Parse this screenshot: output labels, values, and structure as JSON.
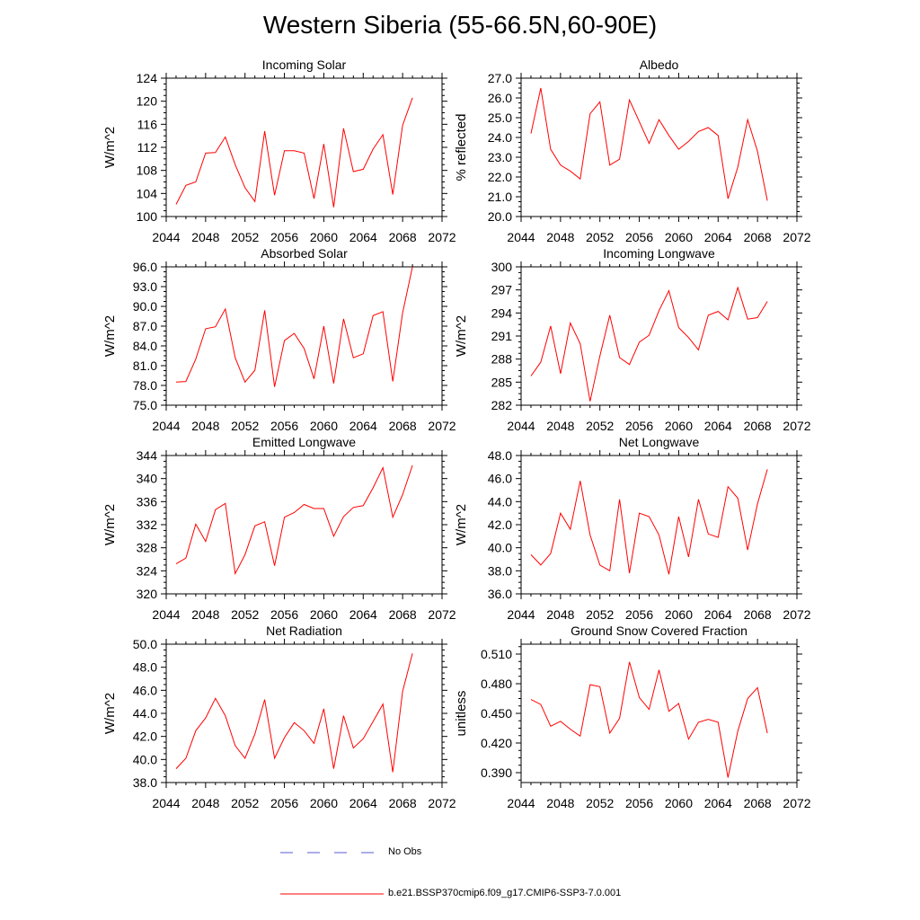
{
  "figure": {
    "title": "Western Siberia (55-66.5N,60-90E)"
  },
  "legend": {
    "obs_label": "No Obs",
    "model_label": "b.e21.BSSP370cmip6.f09_g17.CMIP6-SSP3-7.0.001",
    "model_color": "#ff0000",
    "obs_color": "#5a5ad6"
  },
  "chart_data": [
    {
      "type": "line",
      "title": "Incoming Solar",
      "ylabel": "W/m^2",
      "xlim": [
        2044,
        2072
      ],
      "ylim": [
        100,
        124
      ],
      "xticks": [
        2044,
        2048,
        2052,
        2056,
        2060,
        2064,
        2068,
        2072
      ],
      "yticks": [
        100,
        104,
        108,
        112,
        116,
        120,
        124
      ],
      "ytick_labels": [
        "100",
        "104",
        "108",
        "112",
        "116",
        "120",
        "124"
      ],
      "x": [
        2045,
        2046,
        2047,
        2048,
        2049,
        2050,
        2051,
        2052,
        2053,
        2054,
        2055,
        2056,
        2057,
        2058,
        2059,
        2060,
        2061,
        2062,
        2063,
        2064,
        2065,
        2066,
        2067,
        2068,
        2069
      ],
      "values": [
        102.1,
        105.4,
        106.0,
        111.0,
        111.1,
        113.8,
        109.0,
        105.0,
        102.6,
        114.8,
        103.7,
        111.4,
        111.4,
        111.0,
        103.1,
        112.6,
        101.6,
        115.3,
        107.8,
        108.2,
        111.7,
        114.2,
        103.8,
        115.8,
        120.6
      ]
    },
    {
      "type": "line",
      "title": "Albedo",
      "ylabel": "% reflected",
      "xlim": [
        2044,
        2072
      ],
      "ylim": [
        20,
        27
      ],
      "xticks": [
        2044,
        2048,
        2052,
        2056,
        2060,
        2064,
        2068,
        2072
      ],
      "yticks": [
        20,
        21,
        22,
        23,
        24,
        25,
        26,
        27
      ],
      "ytick_labels": [
        "20.0",
        "21.0",
        "22.0",
        "23.0",
        "24.0",
        "25.0",
        "26.0",
        "27.0"
      ],
      "x": [
        2045,
        2046,
        2047,
        2048,
        2049,
        2050,
        2051,
        2052,
        2053,
        2054,
        2055,
        2056,
        2057,
        2058,
        2059,
        2060,
        2061,
        2062,
        2063,
        2064,
        2065,
        2066,
        2067,
        2068,
        2069
      ],
      "values": [
        24.2,
        26.5,
        23.4,
        22.6,
        22.3,
        21.9,
        25.2,
        25.8,
        22.6,
        22.9,
        25.9,
        24.8,
        23.7,
        24.9,
        24.1,
        23.4,
        23.8,
        24.3,
        24.5,
        24.1,
        20.9,
        22.5,
        24.9,
        23.3,
        20.8
      ]
    },
    {
      "type": "line",
      "title": "Absorbed Solar",
      "ylabel": "W/m^2",
      "xlim": [
        2044,
        2072
      ],
      "ylim": [
        75,
        96
      ],
      "xticks": [
        2044,
        2048,
        2052,
        2056,
        2060,
        2064,
        2068,
        2072
      ],
      "yticks": [
        75,
        78,
        81,
        84,
        87,
        90,
        93,
        96
      ],
      "ytick_labels": [
        "75.0",
        "78.0",
        "81.0",
        "84.0",
        "87.0",
        "90.0",
        "93.0",
        "96.0"
      ],
      "x": [
        2045,
        2046,
        2047,
        2048,
        2049,
        2050,
        2051,
        2052,
        2053,
        2054,
        2055,
        2056,
        2057,
        2058,
        2059,
        2060,
        2061,
        2062,
        2063,
        2064,
        2065,
        2066,
        2067,
        2068,
        2069
      ],
      "values": [
        78.5,
        78.6,
        82.0,
        86.6,
        86.9,
        89.6,
        82.2,
        78.5,
        80.3,
        89.4,
        77.8,
        84.8,
        85.9,
        83.6,
        79.0,
        87.0,
        78.3,
        88.1,
        82.2,
        82.8,
        88.6,
        89.2,
        78.6,
        89.0,
        96.0
      ]
    },
    {
      "type": "line",
      "title": "Incoming Longwave",
      "ylabel": "W/m^2",
      "xlim": [
        2044,
        2072
      ],
      "ylim": [
        282,
        300
      ],
      "xticks": [
        2044,
        2048,
        2052,
        2056,
        2060,
        2064,
        2068,
        2072
      ],
      "yticks": [
        282,
        285,
        288,
        291,
        294,
        297,
        300
      ],
      "ytick_labels": [
        "282",
        "285",
        "288",
        "291",
        "294",
        "297",
        "300"
      ],
      "x": [
        2045,
        2046,
        2047,
        2048,
        2049,
        2050,
        2051,
        2052,
        2053,
        2054,
        2055,
        2056,
        2057,
        2058,
        2059,
        2060,
        2061,
        2062,
        2063,
        2064,
        2065,
        2066,
        2067,
        2068,
        2069
      ],
      "values": [
        285.8,
        287.6,
        292.3,
        286.1,
        292.7,
        290.0,
        282.5,
        288.4,
        293.7,
        288.2,
        287.3,
        290.2,
        291.1,
        294.3,
        296.9,
        292.1,
        290.8,
        289.2,
        293.7,
        294.2,
        293.1,
        297.3,
        293.2,
        293.4,
        295.5
      ]
    },
    {
      "type": "line",
      "title": "Emitted Longwave",
      "ylabel": "W/m^2",
      "xlim": [
        2044,
        2072
      ],
      "ylim": [
        320,
        344
      ],
      "xticks": [
        2044,
        2048,
        2052,
        2056,
        2060,
        2064,
        2068,
        2072
      ],
      "yticks": [
        320,
        324,
        328,
        332,
        336,
        340,
        344
      ],
      "ytick_labels": [
        "320",
        "324",
        "328",
        "332",
        "336",
        "340",
        "344"
      ],
      "x": [
        2045,
        2046,
        2047,
        2048,
        2049,
        2050,
        2051,
        2052,
        2053,
        2054,
        2055,
        2056,
        2057,
        2058,
        2059,
        2060,
        2061,
        2062,
        2063,
        2064,
        2065,
        2066,
        2067,
        2068,
        2069
      ],
      "values": [
        325.2,
        326.2,
        332.1,
        329.1,
        334.6,
        335.7,
        323.5,
        326.8,
        331.8,
        332.5,
        324.9,
        333.3,
        334.1,
        335.5,
        334.8,
        334.8,
        330.0,
        333.4,
        335.0,
        335.3,
        338.4,
        341.9,
        333.3,
        337.2,
        342.3
      ]
    },
    {
      "type": "line",
      "title": "Net Longwave",
      "ylabel": "W/m^2",
      "xlim": [
        2044,
        2072
      ],
      "ylim": [
        36,
        48
      ],
      "xticks": [
        2044,
        2048,
        2052,
        2056,
        2060,
        2064,
        2068,
        2072
      ],
      "yticks": [
        36,
        38,
        40,
        42,
        44,
        46,
        48
      ],
      "ytick_labels": [
        "36.0",
        "38.0",
        "40.0",
        "42.0",
        "44.0",
        "46.0",
        "48.0"
      ],
      "x": [
        2045,
        2046,
        2047,
        2048,
        2049,
        2050,
        2051,
        2052,
        2053,
        2054,
        2055,
        2056,
        2057,
        2058,
        2059,
        2060,
        2061,
        2062,
        2063,
        2064,
        2065,
        2066,
        2067,
        2068,
        2069
      ],
      "values": [
        39.4,
        38.5,
        39.5,
        43.0,
        41.6,
        45.8,
        41.1,
        38.5,
        38.0,
        44.2,
        37.8,
        43.0,
        42.7,
        41.1,
        37.7,
        42.7,
        39.2,
        44.2,
        41.2,
        40.9,
        45.3,
        44.3,
        39.8,
        43.8,
        46.8
      ]
    },
    {
      "type": "line",
      "title": "Net Radiation",
      "ylabel": "W/m^2",
      "xlim": [
        2044,
        2072
      ],
      "ylim": [
        38,
        50
      ],
      "xticks": [
        2044,
        2048,
        2052,
        2056,
        2060,
        2064,
        2068,
        2072
      ],
      "yticks": [
        38,
        40,
        42,
        44,
        46,
        48,
        50
      ],
      "ytick_labels": [
        "38.0",
        "40.0",
        "42.0",
        "44.0",
        "46.0",
        "48.0",
        "50.0"
      ],
      "x": [
        2045,
        2046,
        2047,
        2048,
        2049,
        2050,
        2051,
        2052,
        2053,
        2054,
        2055,
        2056,
        2057,
        2058,
        2059,
        2060,
        2061,
        2062,
        2063,
        2064,
        2065,
        2066,
        2067,
        2068,
        2069
      ],
      "values": [
        39.2,
        40.1,
        42.5,
        43.6,
        45.3,
        43.8,
        41.2,
        40.1,
        42.2,
        45.2,
        40.1,
        41.9,
        43.2,
        42.5,
        41.4,
        44.4,
        39.2,
        43.8,
        41.0,
        41.8,
        43.3,
        44.8,
        38.9,
        45.9,
        49.2
      ]
    },
    {
      "type": "line",
      "title": "Ground Snow Covered Fraction",
      "ylabel": "unitless",
      "xlim": [
        2044,
        2072
      ],
      "ylim": [
        0.38,
        0.52
      ],
      "xticks": [
        2044,
        2048,
        2052,
        2056,
        2060,
        2064,
        2068,
        2072
      ],
      "yticks": [
        0.39,
        0.42,
        0.45,
        0.48,
        0.51
      ],
      "ytick_labels": [
        "0.390",
        "0.420",
        "0.450",
        "0.480",
        "0.510"
      ],
      "x": [
        2045,
        2046,
        2047,
        2048,
        2049,
        2050,
        2051,
        2052,
        2053,
        2054,
        2055,
        2056,
        2057,
        2058,
        2059,
        2060,
        2061,
        2062,
        2063,
        2064,
        2065,
        2066,
        2067,
        2068,
        2069
      ],
      "values": [
        0.464,
        0.459,
        0.437,
        0.442,
        0.434,
        0.427,
        0.479,
        0.477,
        0.43,
        0.445,
        0.502,
        0.466,
        0.454,
        0.494,
        0.452,
        0.46,
        0.424,
        0.441,
        0.444,
        0.441,
        0.385,
        0.432,
        0.465,
        0.476,
        0.43
      ]
    }
  ]
}
